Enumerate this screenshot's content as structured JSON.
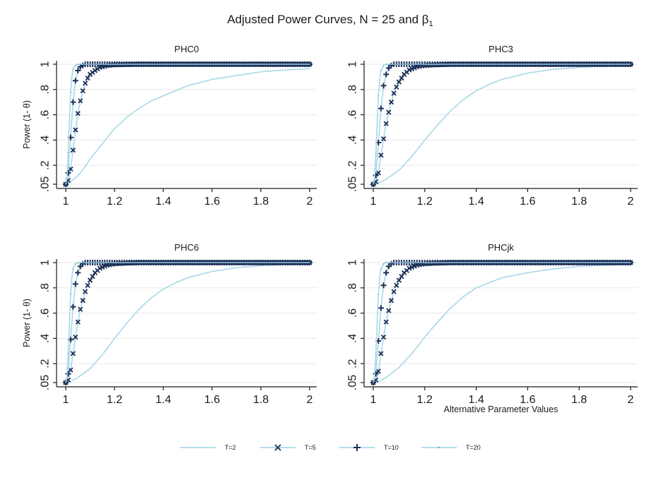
{
  "figure": {
    "title_main": "Adjusted Power Curves, N = 25 and β",
    "title_sub": "1",
    "ylabel": "Power (1- θ)",
    "xlabel": "Alternative Parameter Values"
  },
  "colors": {
    "line": "#a8d8e8",
    "marker": "#1c2f57",
    "axis": "#1a1a1a",
    "grid": "#e8e8e8"
  },
  "chart_data": [
    {
      "type": "line",
      "title": "PHC0",
      "xlim": [
        1,
        2
      ],
      "ylim": [
        0.05,
        1
      ],
      "x_ticks": [
        "1",
        "1.2",
        "1.4",
        "1.6",
        "1.8",
        "2"
      ],
      "y_ticks": [
        ".05",
        ".2",
        ".4",
        ".6",
        ".8",
        "1"
      ],
      "xlabel": "",
      "ylabel": "Power (1- θ)",
      "series": [
        {
          "name": "T=2",
          "marker": "none",
          "x": [
            1.0,
            1.02,
            1.04,
            1.06,
            1.08,
            1.1,
            1.15,
            1.2,
            1.25,
            1.3,
            1.35,
            1.4,
            1.5,
            1.6,
            1.7,
            1.8,
            1.9,
            2.0
          ],
          "y": [
            0.05,
            0.07,
            0.1,
            0.14,
            0.19,
            0.25,
            0.37,
            0.49,
            0.58,
            0.65,
            0.71,
            0.75,
            0.83,
            0.88,
            0.91,
            0.94,
            0.955,
            0.965
          ]
        },
        {
          "name": "T=5",
          "marker": "x",
          "x": [
            1.0,
            1.01,
            1.02,
            1.03,
            1.04,
            1.05,
            1.06,
            1.07,
            1.08,
            1.09,
            1.1,
            1.12,
            1.14,
            1.17,
            1.2,
            1.3,
            1.5,
            2.0
          ],
          "y": [
            0.05,
            0.08,
            0.17,
            0.32,
            0.48,
            0.61,
            0.71,
            0.79,
            0.85,
            0.89,
            0.92,
            0.95,
            0.975,
            0.99,
            0.995,
            1.0,
            1.0,
            1.0
          ]
        },
        {
          "name": "T=10",
          "marker": "plus",
          "x": [
            1.0,
            1.01,
            1.02,
            1.03,
            1.04,
            1.05,
            1.06,
            1.07,
            1.08,
            1.1,
            1.15,
            1.2,
            2.0
          ],
          "y": [
            0.05,
            0.14,
            0.42,
            0.7,
            0.87,
            0.95,
            0.98,
            0.99,
            1.0,
            1.0,
            1.0,
            1.0,
            1.0
          ]
        },
        {
          "name": "T=20",
          "marker": "dot",
          "x": [
            1.0,
            1.005,
            1.01,
            1.015,
            1.02,
            1.025,
            1.03,
            1.04,
            1.05,
            1.06,
            1.1,
            2.0
          ],
          "y": [
            0.05,
            0.1,
            0.3,
            0.55,
            0.78,
            0.9,
            0.96,
            0.99,
            1.0,
            1.0,
            1.0,
            1.0
          ]
        }
      ]
    },
    {
      "type": "line",
      "title": "PHC3",
      "xlim": [
        1,
        2
      ],
      "ylim": [
        0.05,
        1
      ],
      "x_ticks": [
        "1",
        "1.2",
        "1.4",
        "1.6",
        "1.8",
        "2"
      ],
      "y_ticks": [
        ".05",
        ".2",
        ".4",
        ".6",
        ".8",
        "1"
      ],
      "xlabel": "",
      "ylabel": "",
      "series": [
        {
          "name": "T=2",
          "marker": "none",
          "x": [
            1.0,
            1.02,
            1.05,
            1.1,
            1.15,
            1.2,
            1.25,
            1.3,
            1.35,
            1.4,
            1.45,
            1.5,
            1.6,
            1.7,
            1.8,
            1.9,
            2.0
          ],
          "y": [
            0.05,
            0.06,
            0.09,
            0.16,
            0.27,
            0.4,
            0.52,
            0.63,
            0.72,
            0.79,
            0.84,
            0.88,
            0.93,
            0.96,
            0.975,
            0.985,
            0.99
          ]
        },
        {
          "name": "T=5",
          "marker": "x",
          "x": [
            1.0,
            1.01,
            1.02,
            1.03,
            1.04,
            1.05,
            1.06,
            1.07,
            1.08,
            1.09,
            1.1,
            1.12,
            1.14,
            1.17,
            1.2,
            1.3,
            1.5,
            2.0
          ],
          "y": [
            0.05,
            0.07,
            0.14,
            0.28,
            0.41,
            0.53,
            0.62,
            0.7,
            0.77,
            0.82,
            0.86,
            0.92,
            0.955,
            0.98,
            0.99,
            1.0,
            1.0,
            1.0
          ]
        },
        {
          "name": "T=10",
          "marker": "plus",
          "x": [
            1.0,
            1.01,
            1.02,
            1.03,
            1.04,
            1.05,
            1.06,
            1.07,
            1.08,
            1.1,
            1.15,
            1.2,
            2.0
          ],
          "y": [
            0.05,
            0.12,
            0.38,
            0.65,
            0.83,
            0.92,
            0.97,
            0.99,
            1.0,
            1.0,
            1.0,
            1.0,
            1.0
          ]
        },
        {
          "name": "T=20",
          "marker": "dot",
          "x": [
            1.0,
            1.005,
            1.01,
            1.015,
            1.02,
            1.025,
            1.03,
            1.04,
            1.05,
            1.06,
            1.1,
            2.0
          ],
          "y": [
            0.05,
            0.1,
            0.28,
            0.52,
            0.75,
            0.88,
            0.95,
            0.99,
            1.0,
            1.0,
            1.0,
            1.0
          ]
        }
      ]
    },
    {
      "type": "line",
      "title": "PHC6",
      "xlim": [
        1,
        2
      ],
      "ylim": [
        0.05,
        1
      ],
      "x_ticks": [
        "1",
        "1.2",
        "1.4",
        "1.6",
        "1.8",
        "2"
      ],
      "y_ticks": [
        ".05",
        ".2",
        ".4",
        ".6",
        ".8",
        "1"
      ],
      "xlabel": "",
      "ylabel": "Power (1- θ)",
      "series": [
        {
          "name": "T=2",
          "marker": "none",
          "x": [
            1.0,
            1.02,
            1.05,
            1.1,
            1.15,
            1.2,
            1.25,
            1.3,
            1.35,
            1.4,
            1.45,
            1.5,
            1.6,
            1.7,
            1.8,
            1.9,
            2.0
          ],
          "y": [
            0.05,
            0.06,
            0.09,
            0.16,
            0.27,
            0.4,
            0.52,
            0.63,
            0.72,
            0.79,
            0.84,
            0.88,
            0.93,
            0.96,
            0.975,
            0.985,
            0.99
          ]
        },
        {
          "name": "T=5",
          "marker": "x",
          "x": [
            1.0,
            1.01,
            1.02,
            1.03,
            1.04,
            1.05,
            1.06,
            1.07,
            1.08,
            1.09,
            1.1,
            1.12,
            1.14,
            1.17,
            1.2,
            1.3,
            1.5,
            2.0
          ],
          "y": [
            0.05,
            0.07,
            0.15,
            0.28,
            0.41,
            0.53,
            0.63,
            0.7,
            0.77,
            0.82,
            0.86,
            0.92,
            0.955,
            0.98,
            0.99,
            1.0,
            1.0,
            1.0
          ]
        },
        {
          "name": "T=10",
          "marker": "plus",
          "x": [
            1.0,
            1.01,
            1.02,
            1.03,
            1.04,
            1.05,
            1.06,
            1.07,
            1.08,
            1.1,
            1.15,
            1.2,
            2.0
          ],
          "y": [
            0.05,
            0.12,
            0.39,
            0.65,
            0.83,
            0.92,
            0.97,
            0.99,
            1.0,
            1.0,
            1.0,
            1.0,
            1.0
          ]
        },
        {
          "name": "T=20",
          "marker": "dot",
          "x": [
            1.0,
            1.005,
            1.01,
            1.015,
            1.02,
            1.025,
            1.03,
            1.04,
            1.05,
            1.06,
            1.1,
            2.0
          ],
          "y": [
            0.05,
            0.1,
            0.28,
            0.52,
            0.75,
            0.88,
            0.95,
            0.99,
            1.0,
            1.0,
            1.0,
            1.0
          ]
        }
      ]
    },
    {
      "type": "line",
      "title": "PHCjk",
      "xlim": [
        1,
        2
      ],
      "ylim": [
        0.05,
        1
      ],
      "x_ticks": [
        "1",
        "1.2",
        "1.4",
        "1.6",
        "1.8",
        "2"
      ],
      "y_ticks": [
        ".05",
        ".2",
        ".4",
        ".6",
        ".8",
        "1"
      ],
      "xlabel": "Alternative Parameter Values",
      "ylabel": "",
      "series": [
        {
          "name": "T=2",
          "marker": "none",
          "x": [
            1.0,
            1.02,
            1.05,
            1.1,
            1.15,
            1.2,
            1.25,
            1.3,
            1.35,
            1.4,
            1.45,
            1.5,
            1.6,
            1.7,
            1.8,
            1.9,
            2.0
          ],
          "y": [
            0.05,
            0.06,
            0.09,
            0.17,
            0.28,
            0.41,
            0.53,
            0.64,
            0.73,
            0.8,
            0.84,
            0.88,
            0.92,
            0.95,
            0.97,
            0.98,
            0.985
          ]
        },
        {
          "name": "T=5",
          "marker": "x",
          "x": [
            1.0,
            1.01,
            1.02,
            1.03,
            1.04,
            1.05,
            1.06,
            1.07,
            1.08,
            1.09,
            1.1,
            1.12,
            1.14,
            1.17,
            1.2,
            1.3,
            1.5,
            2.0
          ],
          "y": [
            0.05,
            0.07,
            0.14,
            0.28,
            0.41,
            0.53,
            0.62,
            0.7,
            0.77,
            0.82,
            0.86,
            0.92,
            0.955,
            0.98,
            0.99,
            1.0,
            1.0,
            1.0
          ]
        },
        {
          "name": "T=10",
          "marker": "plus",
          "x": [
            1.0,
            1.01,
            1.02,
            1.03,
            1.04,
            1.05,
            1.06,
            1.07,
            1.08,
            1.1,
            1.15,
            1.2,
            2.0
          ],
          "y": [
            0.05,
            0.12,
            0.38,
            0.64,
            0.82,
            0.92,
            0.97,
            0.99,
            1.0,
            1.0,
            1.0,
            1.0,
            1.0
          ]
        },
        {
          "name": "T=20",
          "marker": "dot",
          "x": [
            1.0,
            1.005,
            1.01,
            1.015,
            1.02,
            1.025,
            1.03,
            1.04,
            1.05,
            1.06,
            1.1,
            2.0
          ],
          "y": [
            0.05,
            0.1,
            0.28,
            0.52,
            0.75,
            0.88,
            0.95,
            0.99,
            1.0,
            1.0,
            1.0,
            1.0
          ]
        }
      ]
    }
  ],
  "legend": {
    "placement": "bottom",
    "items": [
      {
        "label": "T=2",
        "marker": "none"
      },
      {
        "label": "T=5",
        "marker": "x"
      },
      {
        "label": "T=10",
        "marker": "plus"
      },
      {
        "label": "T=20",
        "marker": "dot"
      }
    ]
  }
}
